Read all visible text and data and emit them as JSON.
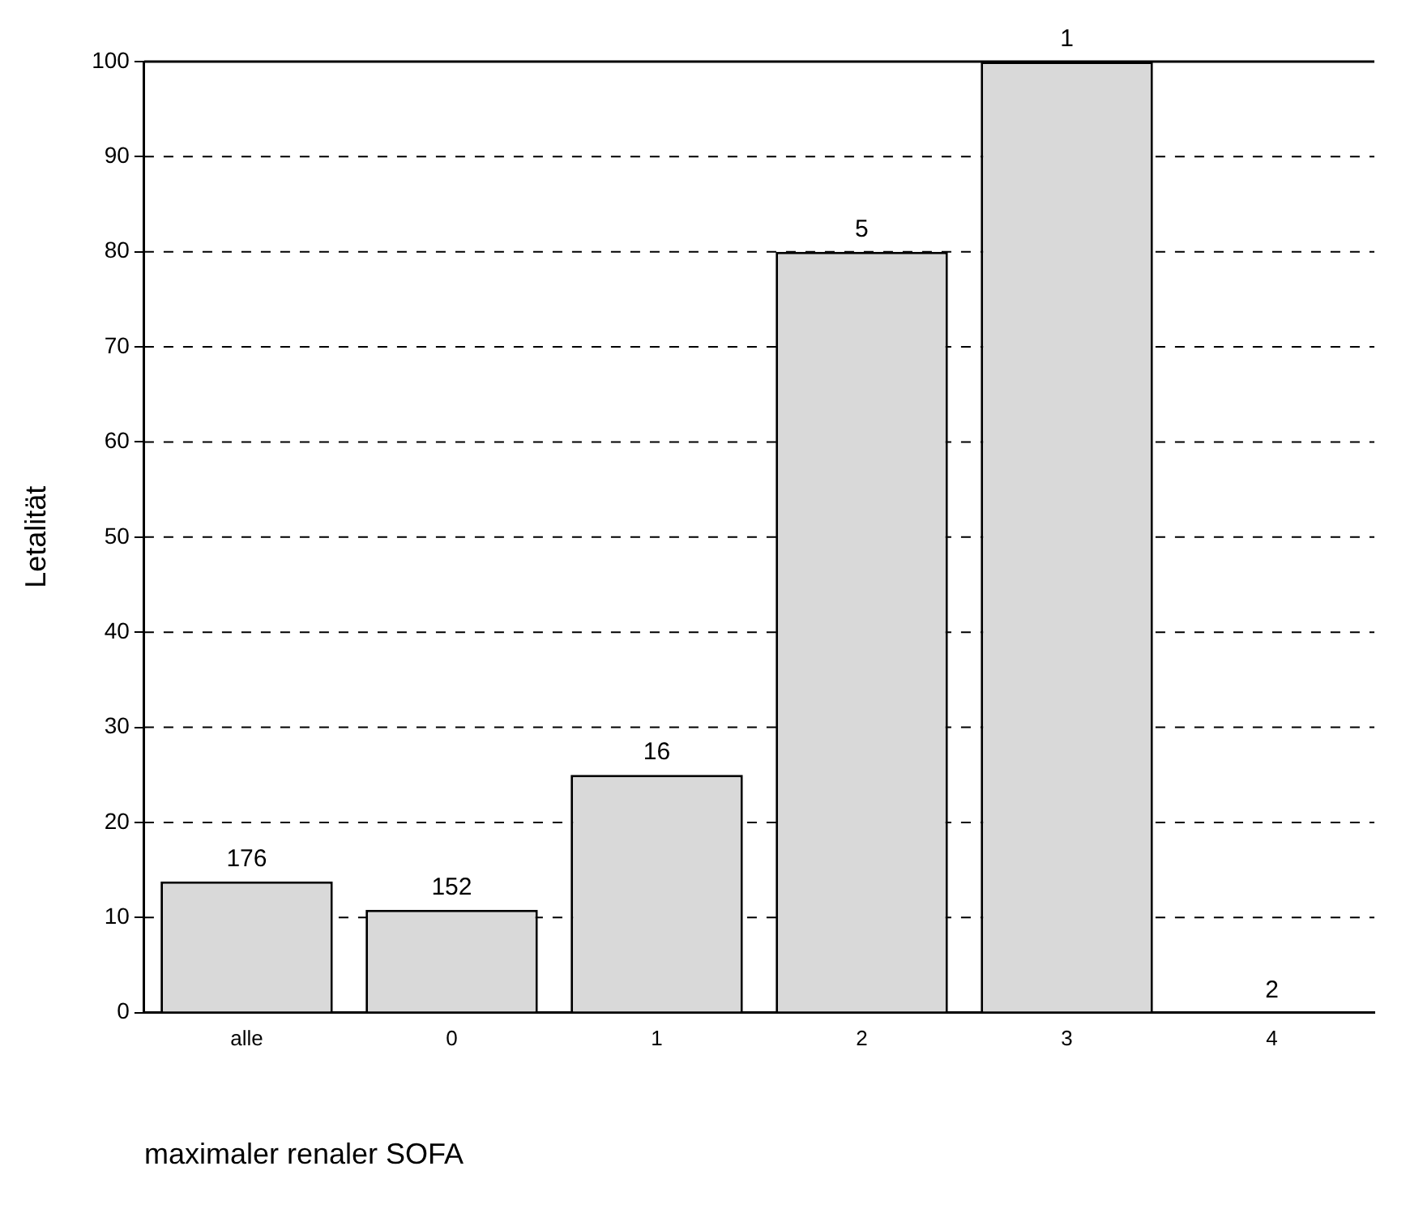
{
  "chart_data": {
    "type": "bar",
    "xlabel": "maximaler renaler SOFA",
    "ylabel": "Letalität",
    "categories": [
      "alle",
      "0",
      "1",
      "2",
      "3",
      "4"
    ],
    "values": [
      13.8,
      10.8,
      25,
      80,
      100,
      0
    ],
    "annotations": [
      {
        "text": "176",
        "x": "alle",
        "y": 13.8
      },
      {
        "text": "152",
        "x": "0",
        "y": 10.8
      },
      {
        "text": "16",
        "x": "1",
        "y": 25
      },
      {
        "text": "5",
        "x": "2",
        "y": 80
      },
      {
        "text": "1",
        "x": "3",
        "y": 100
      },
      {
        "text": "2",
        "x": "4",
        "y": 0
      }
    ],
    "color": "#d9d9d9",
    "ylim": [
      0,
      100
    ],
    "yticks": [
      0,
      10,
      20,
      30,
      40,
      50,
      60,
      70,
      80,
      90,
      100
    ],
    "grid": "y",
    "legend": false
  }
}
